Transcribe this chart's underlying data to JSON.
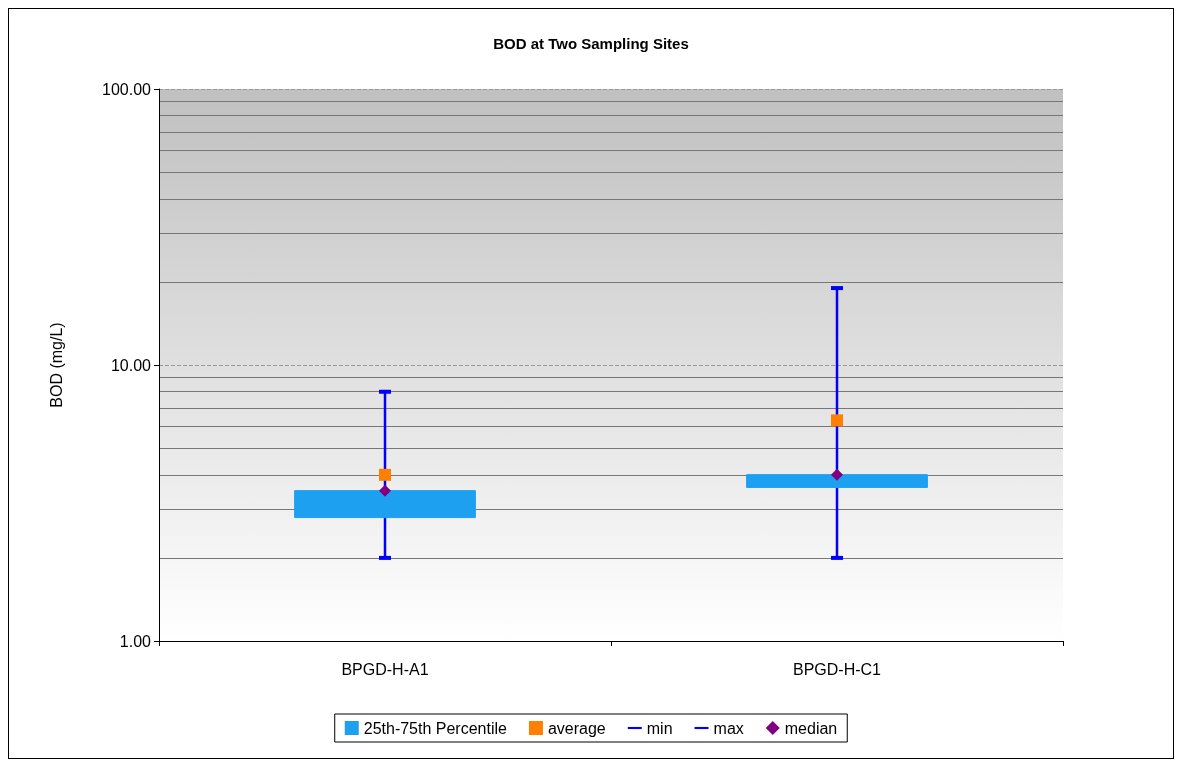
{
  "chart_data": {
    "type": "box",
    "title": "BOD at Two Sampling Sites",
    "ylabel": "BOD (mg/L)",
    "log": "y",
    "grid": "y",
    "legend": "bottom",
    "categories": [
      "BPGD-H-A1",
      "BPGD-H-C1"
    ],
    "ylim": [
      1,
      100
    ],
    "yticks": [
      {
        "value": 1,
        "label": "1.00"
      },
      {
        "value": 10,
        "label": "10.00"
      },
      {
        "value": 100,
        "label": "100.00"
      }
    ],
    "series": [
      {
        "name": "25th-75th Percentile",
        "color": "#1ea0f0",
        "boxes": [
          {
            "low": 2.0,
            "q1": 2.8,
            "median": 3.5,
            "q3": 3.5,
            "high": 8.0
          },
          {
            "low": 2.0,
            "q1": 3.6,
            "median": 4.0,
            "q3": 4.0,
            "high": 19
          }
        ]
      },
      {
        "type": "scatter",
        "name": "average",
        "color": "#ff8000",
        "marker": "square",
        "x": [
          "BPGD-H-A1",
          "BPGD-H-C1"
        ],
        "values": [
          4.0,
          6.3
        ]
      },
      {
        "type": "scatter",
        "name": "min",
        "color": "#0000ff",
        "x": [
          "BPGD-H-A1",
          "BPGD-H-C1"
        ],
        "values": [
          2.0,
          2.0
        ]
      },
      {
        "type": "scatter",
        "name": "max",
        "color": "#0000ff",
        "x": [
          "BPGD-H-A1",
          "BPGD-H-C1"
        ],
        "values": [
          8.0,
          19
        ]
      },
      {
        "type": "scatter",
        "name": "median",
        "color": "#800080",
        "marker": "diamond",
        "x": [
          "BPGD-H-A1",
          "BPGD-H-C1"
        ],
        "values": [
          3.5,
          4.0
        ]
      }
    ]
  }
}
